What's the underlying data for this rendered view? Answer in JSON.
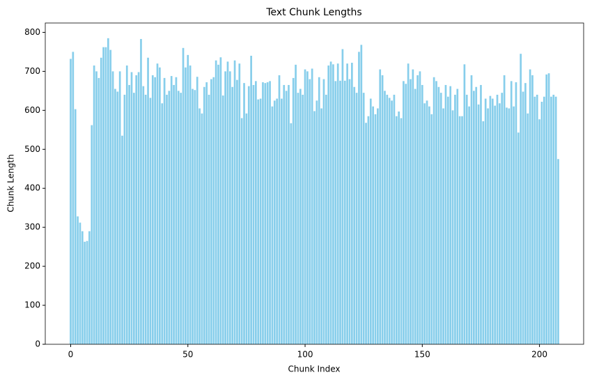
{
  "chart_data": {
    "type": "bar",
    "title": "Text Chunk Lengths",
    "xlabel": "Chunk Index",
    "ylabel": "Chunk Length",
    "color": "#87ceeb",
    "x": [
      0,
      1,
      2,
      3,
      4,
      5,
      6,
      7,
      8,
      9,
      10,
      11,
      12,
      13,
      14,
      15,
      16,
      17,
      18,
      19,
      20,
      21,
      22,
      23,
      24,
      25,
      26,
      27,
      28,
      29,
      30,
      31,
      32,
      33,
      34,
      35,
      36,
      37,
      38,
      39,
      40,
      41,
      42,
      43,
      44,
      45,
      46,
      47,
      48,
      49,
      50,
      51,
      52,
      53,
      54,
      55,
      56,
      57,
      58,
      59,
      60,
      61,
      62,
      63,
      64,
      65,
      66,
      67,
      68,
      69,
      70,
      71,
      72,
      73,
      74,
      75,
      76,
      77,
      78,
      79,
      80,
      81,
      82,
      83,
      84,
      85,
      86,
      87,
      88,
      89,
      90,
      91,
      92,
      93,
      94,
      95,
      96,
      97,
      98,
      99,
      100,
      101,
      102,
      103,
      104,
      105,
      106,
      107,
      108,
      109,
      110,
      111,
      112,
      113,
      114,
      115,
      116,
      117,
      118,
      119,
      120,
      121,
      122,
      123,
      124,
      125,
      126,
      127,
      128,
      129,
      130,
      131,
      132,
      133,
      134,
      135,
      136,
      137,
      138,
      139,
      140,
      141,
      142,
      143,
      144,
      145,
      146,
      147,
      148,
      149,
      150,
      151,
      152,
      153,
      154,
      155,
      156,
      157,
      158,
      159,
      160,
      161,
      162,
      163,
      164,
      165,
      166,
      167,
      168,
      169,
      170,
      171,
      172,
      173,
      174,
      175,
      176,
      177,
      178,
      179,
      180,
      181,
      182,
      183,
      184,
      185,
      186,
      187,
      188,
      189,
      190,
      191,
      192,
      193,
      194,
      195,
      196,
      197,
      198,
      199,
      200,
      201,
      202,
      203,
      204,
      205,
      206,
      207,
      208
    ],
    "values": [
      732,
      750,
      603,
      328,
      312,
      290,
      263,
      265,
      290,
      562,
      715,
      700,
      683,
      735,
      762,
      762,
      785,
      755,
      700,
      655,
      648,
      700,
      535,
      640,
      715,
      665,
      698,
      645,
      690,
      698,
      783,
      662,
      640,
      735,
      632,
      690,
      685,
      720,
      710,
      618,
      683,
      640,
      650,
      688,
      665,
      685,
      650,
      645,
      760,
      710,
      742,
      715,
      655,
      652,
      686,
      605,
      592,
      660,
      672,
      640,
      680,
      685,
      728,
      717,
      736,
      638,
      700,
      725,
      700,
      660,
      728,
      678,
      720,
      580,
      670,
      592,
      662,
      740,
      665,
      675,
      628,
      630,
      672,
      670,
      672,
      675,
      610,
      625,
      630,
      690,
      630,
      665,
      650,
      665,
      567,
      683,
      717,
      645,
      655,
      640,
      705,
      700,
      680,
      707,
      598,
      625,
      685,
      605,
      680,
      640,
      715,
      725,
      718,
      675,
      720,
      676,
      757,
      676,
      720,
      680,
      722,
      660,
      645,
      750,
      768,
      645,
      568,
      585,
      630,
      610,
      590,
      605,
      705,
      690,
      650,
      640,
      632,
      625,
      640,
      585,
      597,
      580,
      675,
      668,
      720,
      680,
      705,
      655,
      690,
      700,
      665,
      618,
      625,
      610,
      590,
      685,
      675,
      660,
      645,
      605,
      665,
      635,
      662,
      600,
      640,
      655,
      585,
      585,
      718,
      640,
      610,
      690,
      650,
      660,
      615,
      665,
      572,
      630,
      605,
      637,
      630,
      612,
      640,
      618,
      645,
      690,
      607,
      605,
      675,
      610,
      672,
      543,
      745,
      648,
      670,
      592,
      705,
      690,
      635,
      640,
      577,
      622,
      635,
      692,
      695,
      635,
      640,
      635,
      475
    ],
    "xlim": [
      -10.84,
      218.84
    ],
    "xticks": [
      0,
      50,
      100,
      150,
      200
    ],
    "ylim": [
      0,
      824
    ],
    "yticks": [
      0,
      100,
      200,
      300,
      400,
      500,
      600,
      700,
      800
    ]
  }
}
